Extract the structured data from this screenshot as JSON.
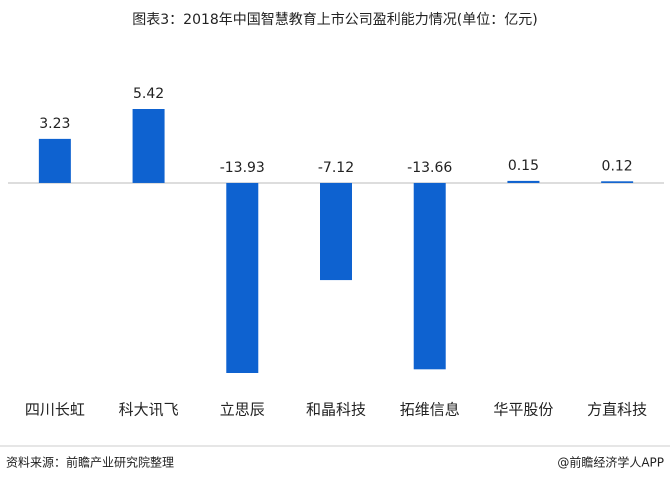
{
  "chart_data": {
    "type": "bar",
    "title": "图表3：2018年中国智慧教育上市公司盈利能力情况(单位：亿元)",
    "categories": [
      "四川长虹",
      "科大讯飞",
      "立思辰",
      "和晶科技",
      "拓维信息",
      "华平股份",
      "方直科技"
    ],
    "values": [
      3.23,
      5.42,
      -13.93,
      -7.12,
      -13.66,
      0.15,
      0.12
    ],
    "color": "#0e62d0",
    "source": "资料来源：前瞻产业研究院整理",
    "credit": "@前瞻经济学人APP"
  }
}
